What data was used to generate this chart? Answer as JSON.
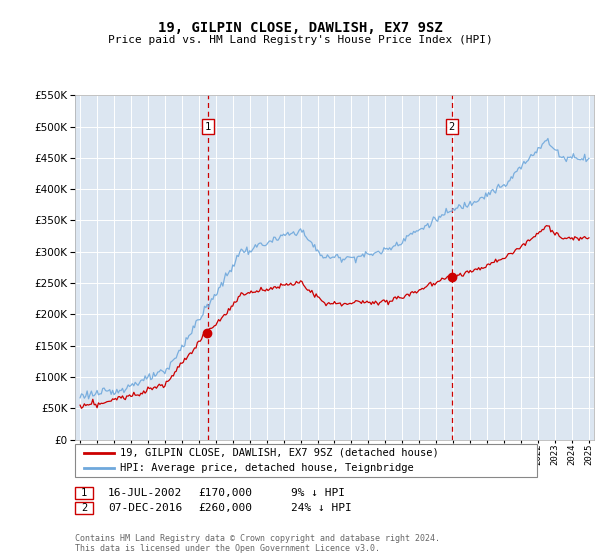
{
  "title": "19, GILPIN CLOSE, DAWLISH, EX7 9SZ",
  "subtitle": "Price paid vs. HM Land Registry's House Price Index (HPI)",
  "legend_line1": "19, GILPIN CLOSE, DAWLISH, EX7 9SZ (detached house)",
  "legend_line2": "HPI: Average price, detached house, Teignbridge",
  "sale1_date": "16-JUL-2002",
  "sale1_price": 170000,
  "sale1_hpi_diff": "9% ↓ HPI",
  "sale2_date": "07-DEC-2016",
  "sale2_price": 260000,
  "sale2_hpi_diff": "24% ↓ HPI",
  "footnote": "Contains HM Land Registry data © Crown copyright and database right 2024.\nThis data is licensed under the Open Government Licence v3.0.",
  "hpi_color": "#6fa8dc",
  "price_color": "#cc0000",
  "vline_color": "#cc0000",
  "plot_bg": "#dce6f1",
  "ylim": [
    0,
    550000
  ],
  "yticks": [
    0,
    50000,
    100000,
    150000,
    200000,
    250000,
    300000,
    350000,
    400000,
    450000,
    500000,
    550000
  ],
  "sale1_x": 2002.54,
  "sale2_x": 2016.92,
  "xlim_left": 1994.7,
  "xlim_right": 2025.3
}
